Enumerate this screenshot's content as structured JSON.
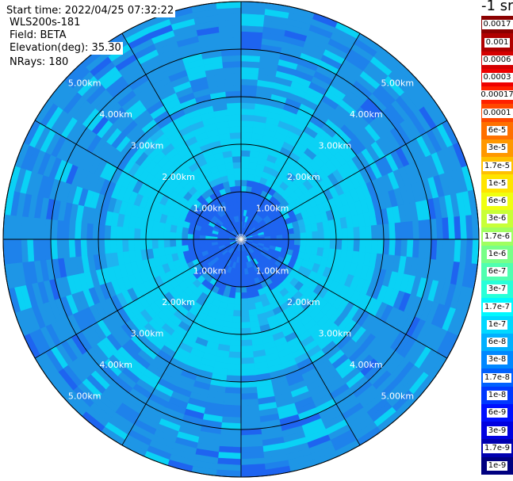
{
  "header": {
    "start_time": "Start time: 2022/04/25 07:32:22",
    "device": "WLS200s-181",
    "field": "Field: BETA",
    "elevation": "Elevation(deg): 35.30",
    "nrays": "NRays: 180"
  },
  "colorbar": {
    "title": "-1 sr",
    "entries": [
      {
        "label": "0.0017",
        "color": "#8b0000"
      },
      {
        "label": "0.001",
        "color": "#b00000"
      },
      {
        "label": "0.0006",
        "color": "#d40000"
      },
      {
        "label": "0.0003",
        "color": "#ee0000"
      },
      {
        "label": "0.00017",
        "color": "#ff2000"
      },
      {
        "label": "0.0001",
        "color": "#ff4800"
      },
      {
        "label": "6e-5",
        "color": "#ff7000"
      },
      {
        "label": "3e-5",
        "color": "#ff9800"
      },
      {
        "label": "1.7e-5",
        "color": "#ffc000"
      },
      {
        "label": "1e-5",
        "color": "#ffe400"
      },
      {
        "label": "6e-6",
        "color": "#f0ff10"
      },
      {
        "label": "3e-6",
        "color": "#c8ff38"
      },
      {
        "label": "1.7e-6",
        "color": "#a0ff60"
      },
      {
        "label": "1e-6",
        "color": "#78ff88"
      },
      {
        "label": "6e-7",
        "color": "#50ffb0"
      },
      {
        "label": "3e-7",
        "color": "#28ffd8"
      },
      {
        "label": "1.7e-7",
        "color": "#00f8ff"
      },
      {
        "label": "1e-7",
        "color": "#00d8ff"
      },
      {
        "label": "6e-8",
        "color": "#00b0ff"
      },
      {
        "label": "3e-8",
        "color": "#0088ff"
      },
      {
        "label": "1.7e-8",
        "color": "#0060ff"
      },
      {
        "label": "1e-8",
        "color": "#0038ff"
      },
      {
        "label": "6e-9",
        "color": "#0010ff"
      },
      {
        "label": "3e-9",
        "color": "#0000e0"
      },
      {
        "label": "1.7e-9",
        "color": "#0000b0"
      },
      {
        "label": "1e-9",
        "color": "#000080"
      }
    ]
  },
  "chart_data": {
    "type": "heatmap",
    "title": "",
    "projection": "polar PPI scan",
    "range_unit": "km",
    "range_max": 5.0,
    "range_ring_labels": [
      "1.00km",
      "2.00km",
      "3.00km",
      "4.00km",
      "5.00km"
    ],
    "range_rings": [
      1,
      2,
      3,
      4,
      5
    ],
    "azimuth_spokes_deg": [
      0,
      30,
      60,
      90,
      120,
      150,
      180,
      210,
      240,
      270,
      300,
      330
    ],
    "rays": 180,
    "field": "BETA",
    "scale": "log",
    "value_range": [
      1e-09,
      0.0017
    ],
    "typical_values": [
      {
        "range_km": [
          0.0,
          1.0
        ],
        "beta": 3e-08
      },
      {
        "range_km": [
          1.0,
          2.0
        ],
        "beta": 1e-07
      },
      {
        "range_km": [
          2.0,
          3.0
        ],
        "beta": 1.7e-07
      },
      {
        "range_km": [
          3.0,
          4.0
        ],
        "beta": 6e-08
      },
      {
        "range_km": [
          4.0,
          5.0
        ],
        "beta": 3e-08
      }
    ],
    "colors": {
      "inner": "#1e64f0",
      "mid": "#0ad2f5",
      "outer": "#1e96e6",
      "grid": "#000000"
    }
  }
}
